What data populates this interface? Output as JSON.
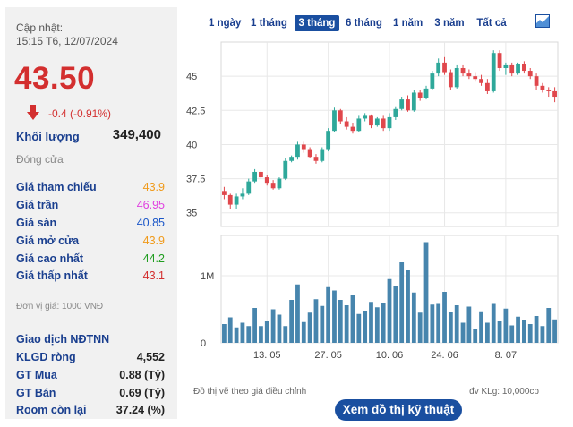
{
  "quote": {
    "updated_label": "Cập nhật:",
    "updated_time": "15:15 T6, 12/07/2024",
    "price": "43.50",
    "change": "-0.4 (-0.91%)",
    "volume_label": "Khối lượng",
    "volume_value": "349,400",
    "status": "Đóng cửa",
    "unit_note": "Đơn vị giá: 1000 VNĐ"
  },
  "prices": [
    {
      "label": "Giá tham chiếu",
      "value": "43.9",
      "color": "#f09a1a"
    },
    {
      "label": "Giá trần",
      "value": "46.95",
      "color": "#e040e0"
    },
    {
      "label": "Giá sàn",
      "value": "40.85",
      "color": "#1a56c8"
    },
    {
      "label": "Giá mở cửa",
      "value": "43.9",
      "color": "#f09a1a"
    },
    {
      "label": "Giá cao nhất",
      "value": "44.2",
      "color": "#1f9d1f"
    },
    {
      "label": "Giá thấp nhất",
      "value": "43.1",
      "color": "#d32f2f"
    }
  ],
  "foreign": {
    "title": "Giao dịch NĐTNN",
    "rows": [
      {
        "label": "KLGD ròng",
        "value": "4,552"
      },
      {
        "label": "GT Mua",
        "value": "0.88 (Tỷ)"
      },
      {
        "label": "GT Bán",
        "value": "0.69 (Tỷ)"
      },
      {
        "label": "Room còn lại",
        "value": "37.24 (%)"
      }
    ]
  },
  "ranges": [
    "1 ngày",
    "1 tháng",
    "3 tháng",
    "6 tháng",
    "1 năm",
    "3 năm",
    "Tất cả"
  ],
  "active_range": "3 tháng",
  "footer": {
    "note_left": "Đồ thị vẽ theo giá điều chỉnh",
    "note_right": "đv KLg: 10,000cp",
    "button": "Xem đồ thị kỹ thuật"
  },
  "chart_data": {
    "type": "candlestick",
    "price_axis": {
      "ticks": [
        "35",
        "37.5",
        "40",
        "42.5",
        "45"
      ],
      "ylim": [
        34,
        47.5
      ]
    },
    "volume_axis": {
      "ticks": [
        "0",
        "1M"
      ],
      "ylim": [
        0,
        1600000
      ]
    },
    "x_ticks": [
      "13. 05",
      "27. 05",
      "10. 06",
      "24. 06",
      "8. 07"
    ],
    "colors": {
      "up": "#2ea89a",
      "down": "#e0474c",
      "volume": "#4785ad",
      "grid": "#e8e8e8"
    },
    "candles": [
      {
        "o": 36.6,
        "h": 36.9,
        "l": 36.0,
        "c": 36.3,
        "v": 280000
      },
      {
        "o": 36.3,
        "h": 36.4,
        "l": 35.3,
        "c": 35.6,
        "v": 380000
      },
      {
        "o": 35.6,
        "h": 36.4,
        "l": 35.3,
        "c": 36.2,
        "v": 230000
      },
      {
        "o": 36.2,
        "h": 36.8,
        "l": 36.0,
        "c": 36.4,
        "v": 300000
      },
      {
        "o": 36.4,
        "h": 37.5,
        "l": 36.3,
        "c": 37.3,
        "v": 250000
      },
      {
        "o": 37.3,
        "h": 38.2,
        "l": 37.2,
        "c": 38.0,
        "v": 520000
      },
      {
        "o": 38.0,
        "h": 38.1,
        "l": 37.5,
        "c": 37.6,
        "v": 250000
      },
      {
        "o": 37.6,
        "h": 37.8,
        "l": 37.0,
        "c": 37.2,
        "v": 320000
      },
      {
        "o": 37.2,
        "h": 37.4,
        "l": 36.7,
        "c": 36.8,
        "v": 500000
      },
      {
        "o": 36.8,
        "h": 37.6,
        "l": 36.7,
        "c": 37.5,
        "v": 420000
      },
      {
        "o": 37.5,
        "h": 39.0,
        "l": 37.4,
        "c": 38.8,
        "v": 250000
      },
      {
        "o": 38.8,
        "h": 39.2,
        "l": 38.7,
        "c": 39.1,
        "v": 640000
      },
      {
        "o": 39.1,
        "h": 40.2,
        "l": 38.9,
        "c": 40.0,
        "v": 870000
      },
      {
        "o": 40.0,
        "h": 40.2,
        "l": 39.4,
        "c": 39.6,
        "v": 310000
      },
      {
        "o": 39.6,
        "h": 39.8,
        "l": 39.0,
        "c": 39.1,
        "v": 450000
      },
      {
        "o": 39.1,
        "h": 39.3,
        "l": 38.6,
        "c": 38.8,
        "v": 650000
      },
      {
        "o": 38.8,
        "h": 39.8,
        "l": 38.7,
        "c": 39.6,
        "v": 550000
      },
      {
        "o": 39.6,
        "h": 41.2,
        "l": 39.5,
        "c": 41.0,
        "v": 830000
      },
      {
        "o": 41.0,
        "h": 42.7,
        "l": 40.9,
        "c": 42.5,
        "v": 780000
      },
      {
        "o": 42.5,
        "h": 42.6,
        "l": 41.5,
        "c": 41.7,
        "v": 640000
      },
      {
        "o": 41.7,
        "h": 42.0,
        "l": 41.1,
        "c": 41.3,
        "v": 560000
      },
      {
        "o": 41.3,
        "h": 41.6,
        "l": 40.8,
        "c": 41.0,
        "v": 720000
      },
      {
        "o": 41.0,
        "h": 42.1,
        "l": 40.9,
        "c": 41.9,
        "v": 430000
      },
      {
        "o": 41.9,
        "h": 42.3,
        "l": 41.7,
        "c": 42.1,
        "v": 480000
      },
      {
        "o": 42.1,
        "h": 42.2,
        "l": 41.2,
        "c": 41.4,
        "v": 610000
      },
      {
        "o": 41.4,
        "h": 42.0,
        "l": 41.3,
        "c": 41.9,
        "v": 530000
      },
      {
        "o": 41.9,
        "h": 42.1,
        "l": 41.0,
        "c": 41.2,
        "v": 600000
      },
      {
        "o": 41.2,
        "h": 42.3,
        "l": 41.0,
        "c": 42.0,
        "v": 950000
      },
      {
        "o": 42.0,
        "h": 42.8,
        "l": 41.8,
        "c": 42.6,
        "v": 850000
      },
      {
        "o": 42.6,
        "h": 43.5,
        "l": 42.5,
        "c": 43.3,
        "v": 1200000
      },
      {
        "o": 43.3,
        "h": 43.6,
        "l": 42.4,
        "c": 42.5,
        "v": 1080000
      },
      {
        "o": 42.5,
        "h": 44.0,
        "l": 42.4,
        "c": 43.8,
        "v": 750000
      },
      {
        "o": 43.8,
        "h": 44.0,
        "l": 43.2,
        "c": 43.4,
        "v": 450000
      },
      {
        "o": 43.4,
        "h": 44.3,
        "l": 43.3,
        "c": 44.1,
        "v": 1500000
      },
      {
        "o": 44.1,
        "h": 45.4,
        "l": 44.0,
        "c": 45.2,
        "v": 570000
      },
      {
        "o": 45.2,
        "h": 46.3,
        "l": 45.0,
        "c": 46.0,
        "v": 580000
      },
      {
        "o": 46.0,
        "h": 46.4,
        "l": 45.1,
        "c": 45.3,
        "v": 760000
      },
      {
        "o": 45.3,
        "h": 45.5,
        "l": 44.0,
        "c": 44.2,
        "v": 460000
      },
      {
        "o": 44.2,
        "h": 45.8,
        "l": 44.1,
        "c": 45.6,
        "v": 560000
      },
      {
        "o": 45.6,
        "h": 45.8,
        "l": 45.0,
        "c": 45.2,
        "v": 300000
      },
      {
        "o": 45.2,
        "h": 45.5,
        "l": 44.8,
        "c": 45.0,
        "v": 540000
      },
      {
        "o": 45.0,
        "h": 45.3,
        "l": 44.6,
        "c": 44.8,
        "v": 210000
      },
      {
        "o": 44.8,
        "h": 45.1,
        "l": 44.3,
        "c": 44.5,
        "v": 470000
      },
      {
        "o": 44.5,
        "h": 44.8,
        "l": 43.7,
        "c": 43.9,
        "v": 300000
      },
      {
        "o": 43.9,
        "h": 46.9,
        "l": 43.8,
        "c": 46.7,
        "v": 580000
      },
      {
        "o": 46.7,
        "h": 46.9,
        "l": 45.4,
        "c": 45.6,
        "v": 320000
      },
      {
        "o": 45.6,
        "h": 46.0,
        "l": 45.1,
        "c": 45.8,
        "v": 510000
      },
      {
        "o": 45.8,
        "h": 46.0,
        "l": 45.0,
        "c": 45.2,
        "v": 260000
      },
      {
        "o": 45.2,
        "h": 46.0,
        "l": 45.1,
        "c": 45.9,
        "v": 390000
      },
      {
        "o": 45.9,
        "h": 46.1,
        "l": 45.2,
        "c": 45.4,
        "v": 340000
      },
      {
        "o": 45.4,
        "h": 45.6,
        "l": 44.8,
        "c": 45.0,
        "v": 280000
      },
      {
        "o": 45.0,
        "h": 45.2,
        "l": 44.0,
        "c": 44.3,
        "v": 400000
      },
      {
        "o": 44.3,
        "h": 44.5,
        "l": 43.8,
        "c": 44.0,
        "v": 250000
      },
      {
        "o": 44.0,
        "h": 44.2,
        "l": 43.5,
        "c": 43.9,
        "v": 520000
      },
      {
        "o": 43.9,
        "h": 44.2,
        "l": 43.1,
        "c": 43.5,
        "v": 349400
      }
    ]
  }
}
